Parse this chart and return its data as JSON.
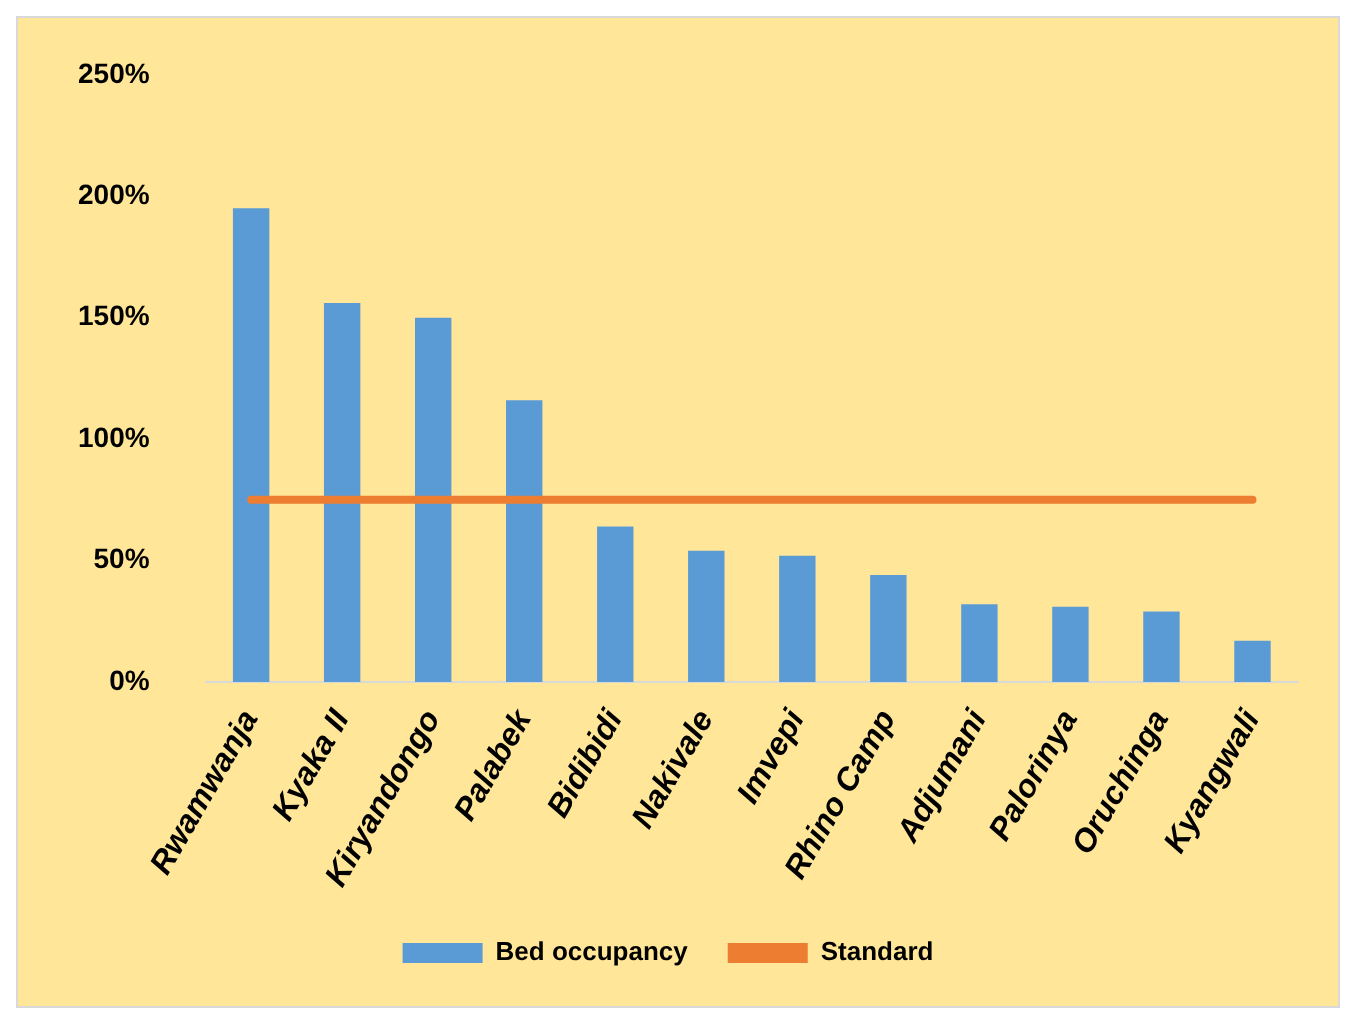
{
  "chart_data": {
    "type": "bar",
    "categories": [
      "Rwamwanja",
      "Kyaka II",
      "Kiryandongo",
      "Palabek",
      "Bidibidi",
      "Nakivale",
      "Imvepi",
      "Rhino Camp",
      "Adjumani",
      "Palorinya",
      "Oruchinga",
      "Kyangwali"
    ],
    "series": [
      {
        "name": "Bed occupancy",
        "color": "#5b9bd5",
        "values": [
          195,
          156,
          150,
          116,
          64,
          54,
          52,
          44,
          32,
          31,
          29,
          17
        ]
      },
      {
        "name": "Standard",
        "type": "line",
        "color": "#ed7d31",
        "values": [
          75,
          75,
          75,
          75,
          75,
          75,
          75,
          75,
          75,
          75,
          75,
          75
        ]
      }
    ],
    "ylim": [
      0,
      250
    ],
    "yticks": [
      {
        "value": 0,
        "label": "0%"
      },
      {
        "value": 50,
        "label": "50%"
      },
      {
        "value": 100,
        "label": "100%"
      },
      {
        "value": 150,
        "label": "150%"
      },
      {
        "value": 200,
        "label": "200%"
      },
      {
        "value": 250,
        "label": "250%"
      }
    ],
    "grid": false,
    "legend": "bottom",
    "marker": "none"
  }
}
